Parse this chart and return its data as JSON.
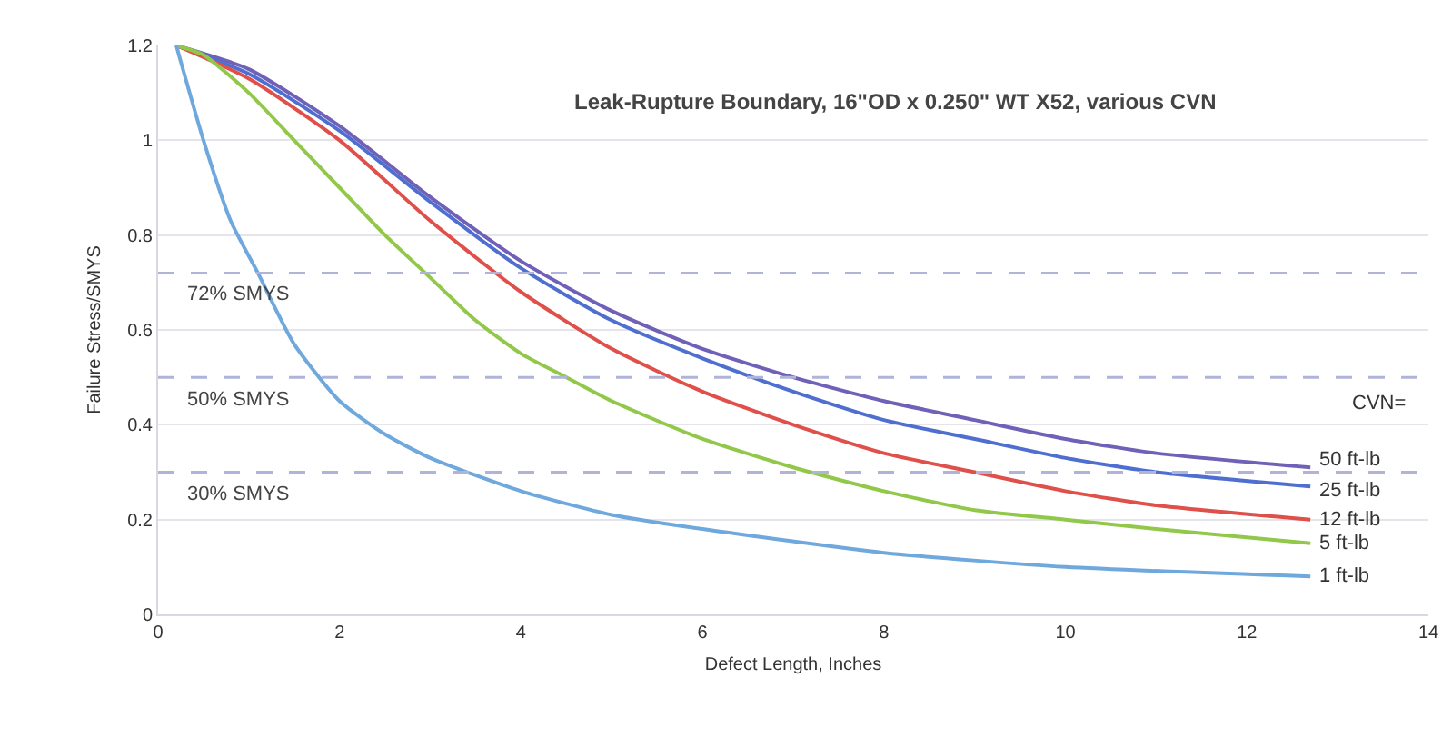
{
  "chart_data": {
    "type": "line",
    "title": "Leak-Rupture Boundary, 16\"OD x 0.250\" WT X52, various CVN",
    "xlabel": "Defect Length, Inches",
    "ylabel": "Failure Stress/SMYS",
    "annotations": [
      "CVN="
    ],
    "xlim": [
      0,
      14
    ],
    "xticks": [
      0,
      2,
      4,
      6,
      8,
      10,
      12,
      14
    ],
    "ylim": [
      0,
      1.2
    ],
    "yticks": [
      0,
      0.2,
      0.4,
      0.6,
      0.8,
      1,
      1.2
    ],
    "grid": "y",
    "legend": false,
    "marker": "none",
    "line_style": "solid",
    "ref_lines": [
      {
        "axis": "y",
        "value": 0.72,
        "label": "72% SMYS",
        "color": "#b0b4d8",
        "line_style": "dashed"
      },
      {
        "axis": "y",
        "value": 0.5,
        "label": "50% SMYS",
        "color": "#b0b4d8",
        "line_style": "dashed"
      },
      {
        "axis": "y",
        "value": 0.3,
        "label": "30% SMYS",
        "color": "#b0b4d8",
        "line_style": "dashed"
      }
    ],
    "series": [
      {
        "name": "50 ft-lb",
        "color": "#7060b8",
        "x": [
          0.2,
          1,
          2,
          3,
          4,
          5,
          6,
          7,
          8,
          9,
          10,
          11,
          12.7
        ],
        "values": [
          1.2,
          1.15,
          1.03,
          0.88,
          0.745,
          0.64,
          0.56,
          0.5,
          0.45,
          0.41,
          0.37,
          0.34,
          0.31
        ]
      },
      {
        "name": "25 ft-lb",
        "color": "#4f6fd0",
        "x": [
          0.2,
          1,
          2,
          3,
          4,
          5,
          6,
          7,
          8,
          9,
          10,
          11,
          12.7
        ],
        "values": [
          1.2,
          1.14,
          1.02,
          0.87,
          0.73,
          0.62,
          0.54,
          0.47,
          0.41,
          0.37,
          0.33,
          0.3,
          0.27
        ]
      },
      {
        "name": "12 ft-lb",
        "color": "#e0504a",
        "x": [
          0.2,
          1,
          2,
          3,
          4,
          5,
          6,
          7,
          8,
          9,
          10,
          11,
          12.7
        ],
        "values": [
          1.2,
          1.13,
          1.0,
          0.83,
          0.68,
          0.56,
          0.47,
          0.4,
          0.34,
          0.3,
          0.26,
          0.23,
          0.2
        ]
      },
      {
        "name": "5 ft-lb",
        "color": "#92c84a",
        "x": [
          0.2,
          0.5,
          1,
          1.5,
          2,
          2.5,
          3,
          3.5,
          4,
          4.5,
          5,
          6,
          7,
          8,
          9,
          10,
          11,
          12.7
        ],
        "values": [
          1.2,
          1.18,
          1.1,
          1.0,
          0.9,
          0.8,
          0.71,
          0.62,
          0.55,
          0.5,
          0.45,
          0.37,
          0.31,
          0.26,
          0.22,
          0.2,
          0.18,
          0.15
        ]
      },
      {
        "name": "1 ft-lb",
        "color": "#6fa8dc",
        "x": [
          0.2,
          0.5,
          0.8,
          1.1,
          1.5,
          2,
          2.5,
          3,
          4,
          5,
          6,
          8,
          10,
          12.7
        ],
        "values": [
          1.2,
          1.0,
          0.83,
          0.72,
          0.57,
          0.45,
          0.38,
          0.33,
          0.26,
          0.21,
          0.18,
          0.13,
          0.1,
          0.08
        ]
      }
    ]
  }
}
